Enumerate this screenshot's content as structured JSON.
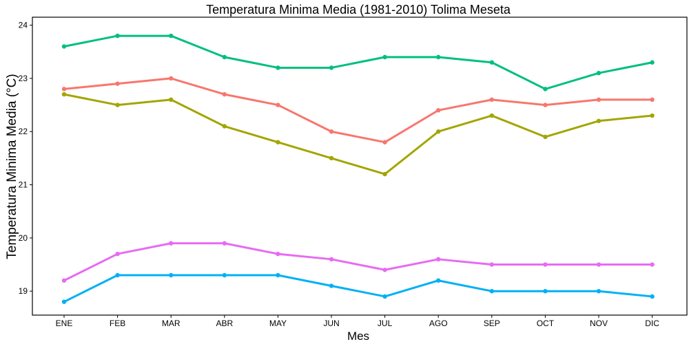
{
  "chart_data": {
    "type": "line",
    "title": "Temperatura Minima Media (1981-2010)  Tolima Meseta",
    "xlabel": "Mes",
    "ylabel": "Temperatura Minima Media  (°C)",
    "categories": [
      "ENE",
      "FEB",
      "MAR",
      "ABR",
      "MAY",
      "JUN",
      "JUL",
      "AGO",
      "SEP",
      "OCT",
      "NOV",
      "DIC"
    ],
    "ylim": [
      18.55,
      24.15
    ],
    "yticks": [
      19,
      20,
      21,
      22,
      23,
      24
    ],
    "grid": false,
    "legend": "none",
    "series": [
      {
        "color": "#F8766D",
        "values": [
          22.8,
          22.9,
          23.0,
          22.7,
          22.5,
          22.0,
          21.8,
          22.4,
          22.6,
          22.5,
          22.6,
          22.6
        ]
      },
      {
        "color": "#A3A500",
        "values": [
          22.7,
          22.5,
          22.6,
          22.1,
          21.8,
          21.5,
          21.2,
          22.0,
          22.3,
          21.9,
          22.2,
          22.3
        ]
      },
      {
        "color": "#00BF7D",
        "values": [
          23.6,
          23.8,
          23.8,
          23.4,
          23.2,
          23.2,
          23.4,
          23.4,
          23.3,
          22.8,
          23.1,
          23.3
        ]
      },
      {
        "color": "#00B0F6",
        "values": [
          18.8,
          19.3,
          19.3,
          19.3,
          19.3,
          19.1,
          18.9,
          19.2,
          19.0,
          19.0,
          19.0,
          18.9
        ]
      },
      {
        "color": "#E76BF3",
        "values": [
          19.2,
          19.7,
          19.9,
          19.9,
          19.7,
          19.6,
          19.4,
          19.6,
          19.5,
          19.5,
          19.5,
          19.5
        ]
      }
    ]
  }
}
